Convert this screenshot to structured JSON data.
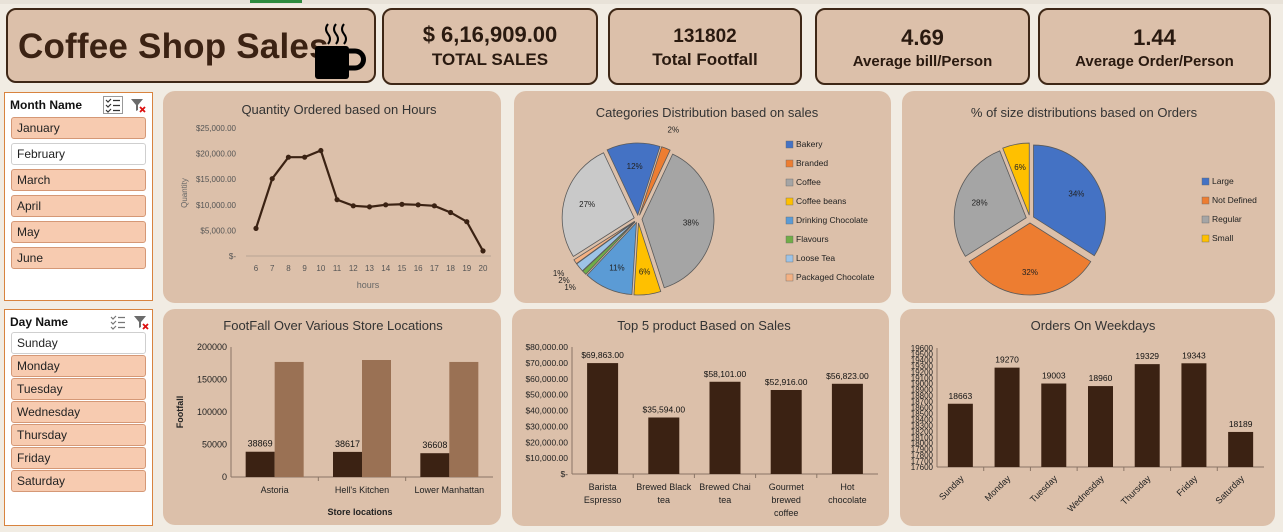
{
  "header": {
    "title": "Coffee Shop Sales",
    "icon": "coffee-cup-icon"
  },
  "kpis": [
    {
      "value": "$ 6,16,909.00",
      "label": "TOTAL SALES"
    },
    {
      "value": "131802",
      "label": "Total Footfall"
    },
    {
      "value": "4.69",
      "label": "Average bill/Person"
    },
    {
      "value": "1.44",
      "label": "Average Order/Person"
    }
  ],
  "month_slicer": {
    "header": "Month Name",
    "items": [
      {
        "label": "January",
        "selected": true
      },
      {
        "label": "February",
        "selected": false
      },
      {
        "label": "March",
        "selected": true
      },
      {
        "label": "April",
        "selected": true
      },
      {
        "label": "May",
        "selected": true
      },
      {
        "label": "June",
        "selected": true
      }
    ]
  },
  "day_slicer": {
    "header": "Day Name",
    "items": [
      {
        "label": "Sunday",
        "selected": false
      },
      {
        "label": "Monday",
        "selected": true
      },
      {
        "label": "Tuesday",
        "selected": true
      },
      {
        "label": "Wednesday",
        "selected": true
      },
      {
        "label": "Thursday",
        "selected": true
      },
      {
        "label": "Friday",
        "selected": true
      },
      {
        "label": "Saturday",
        "selected": true
      }
    ]
  },
  "chart_data": [
    {
      "id": "hours",
      "type": "line",
      "title": "Quantity Ordered based on Hours",
      "xlabel": "hours",
      "ylabel": "Quantity",
      "x": [
        6,
        7,
        8,
        9,
        10,
        11,
        12,
        13,
        14,
        15,
        16,
        17,
        18,
        19,
        20
      ],
      "values": [
        5400,
        15100,
        19300,
        19300,
        20600,
        11000,
        9800,
        9600,
        10000,
        10100,
        10000,
        9800,
        8500,
        6700,
        1000
      ],
      "ylim": [
        0,
        25000
      ],
      "yticks": [
        "$-",
        "$5,000.00",
        "$10,000.00",
        "$15,000.00",
        "$20,000.00",
        "$25,000.00"
      ],
      "color": "#3b2213",
      "grid": false
    },
    {
      "id": "categories",
      "type": "pie",
      "title": "Categories Distribution based on sales",
      "legend": "right",
      "slices": [
        {
          "name": "Bakery",
          "value": 12,
          "label": "12%",
          "color": "#4472c4"
        },
        {
          "name": "Branded",
          "value": 2,
          "label": "2%",
          "color": "#ed7d31"
        },
        {
          "name": "Coffee",
          "value": 38,
          "label": "38%",
          "color": "#a5a5a5"
        },
        {
          "name": "Coffee beans",
          "value": 6,
          "label": "6%",
          "color": "#ffc000"
        },
        {
          "name": "Drinking Chocolate",
          "value": 11,
          "label": "11%",
          "color": "#5b9bd5"
        },
        {
          "name": "Flavours",
          "value": 1,
          "label": "1%",
          "color": "#70ad47"
        },
        {
          "name": "Loose Tea",
          "value": 2,
          "label": "2%",
          "color": "#9dc3e6"
        },
        {
          "name": "Packaged Chocolate",
          "value": 1,
          "label": "1%",
          "color": "#f4b183"
        },
        {
          "name": "",
          "value": 27,
          "label": "27%",
          "color": "#c9c9c9"
        }
      ]
    },
    {
      "id": "sizes",
      "type": "pie",
      "title": "% of size distributions based on Orders",
      "legend": "right",
      "slices": [
        {
          "name": "Large",
          "value": 34,
          "label": "34%",
          "color": "#4472c4"
        },
        {
          "name": "Not Defined",
          "value": 32,
          "label": "32%",
          "color": "#ed7d31"
        },
        {
          "name": "Regular",
          "value": 28,
          "label": "28%",
          "color": "#a5a5a5"
        },
        {
          "name": "Small",
          "value": 6,
          "label": "6%",
          "color": "#ffc000"
        }
      ]
    },
    {
      "id": "footfall",
      "type": "bar",
      "title": "FootFall Over Various Store Locations",
      "xlabel": "Store locations",
      "ylabel": "Footfall",
      "categories": [
        "Astoria",
        "Hell's Kitchen",
        "Lower Manhattan"
      ],
      "series": [
        {
          "values": [
            38869,
            38617,
            36608
          ],
          "labels": [
            "38869",
            "38617",
            "36608"
          ],
          "color": "#3b2213"
        },
        {
          "values": [
            177000,
            180000,
            177000
          ],
          "color": "#9a7154"
        }
      ],
      "ylim": [
        0,
        200000
      ],
      "yticks": [
        "0",
        "50000",
        "100000",
        "150000",
        "200000"
      ]
    },
    {
      "id": "top5",
      "type": "bar",
      "title": "Top 5 product Based on Sales",
      "categories": [
        [
          "Barista",
          "Espresso"
        ],
        [
          "Brewed Black",
          "tea"
        ],
        [
          "Brewed Chai",
          "tea"
        ],
        [
          "Gourmet",
          "brewed",
          "coffee"
        ],
        [
          "Hot",
          "chocolate"
        ]
      ],
      "values": [
        69863,
        35594,
        58101,
        52916,
        56823
      ],
      "labels": [
        "$69,863.00",
        "$35,594.00",
        "$58,101.00",
        "$52,916.00",
        "$56,823.00"
      ],
      "ylim": [
        0,
        80000
      ],
      "yticks": [
        "$-",
        "$10,000.00",
        "$20,000.00",
        "$30,000.00",
        "$40,000.00",
        "$50,000.00",
        "$60,000.00",
        "$70,000.00",
        "$80,000.00"
      ],
      "color": "#3b2213"
    },
    {
      "id": "weekdays",
      "type": "bar",
      "title": "Orders On Weekdays",
      "categories": [
        "Sunday",
        "Monday",
        "Tuesday",
        "Wednesday",
        "Thursday",
        "Friday",
        "Saturday"
      ],
      "values": [
        18663,
        19270,
        19003,
        18960,
        19329,
        19343,
        18189
      ],
      "labels": [
        "18663",
        "19270",
        "19003",
        "18960",
        "19329",
        "19343",
        "18189"
      ],
      "ylim": [
        17600,
        19600
      ],
      "yticks": [
        "17600",
        "17700",
        "17800",
        "17900",
        "18000",
        "18100",
        "18200",
        "18300",
        "18400",
        "18500",
        "18600",
        "18700",
        "18800",
        "18900",
        "19000",
        "19100",
        "19200",
        "19300",
        "19400",
        "19500",
        "19600"
      ],
      "color": "#3b2213"
    }
  ]
}
